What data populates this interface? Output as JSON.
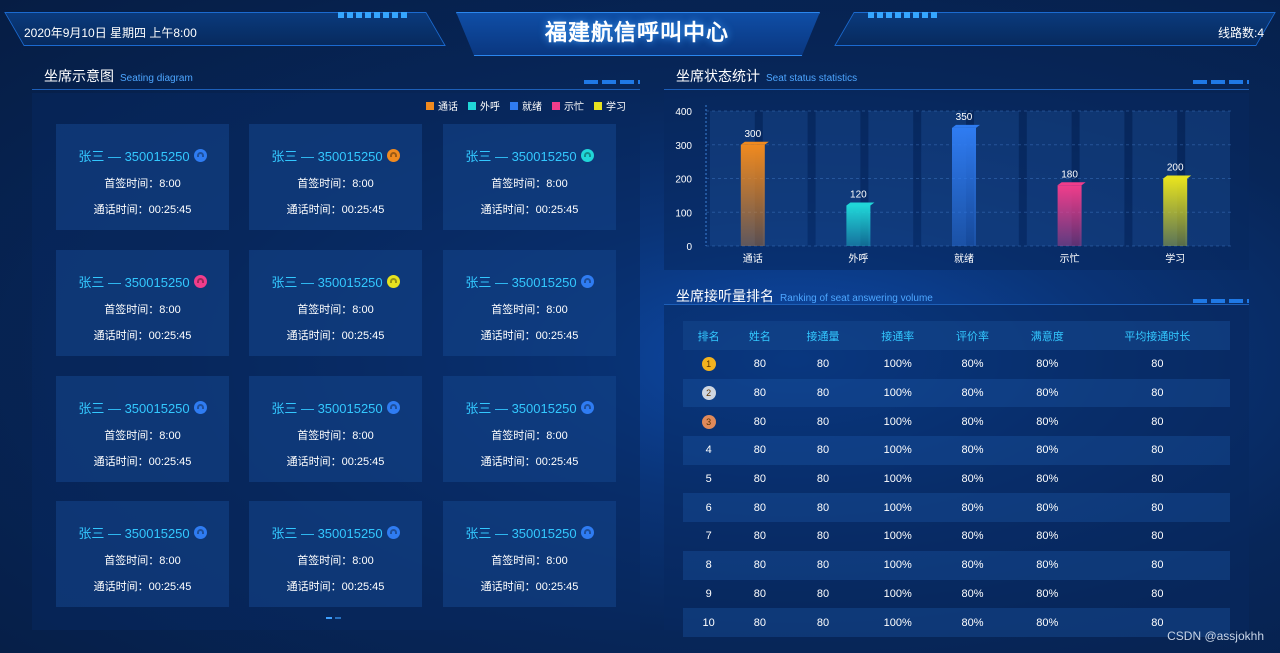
{
  "header": {
    "datetime": "2020年9月10日  星期四  上午8:00",
    "title": "福建航信呼叫中心",
    "line_count": "线路数:4"
  },
  "seat_panel": {
    "title": "坐席示意图",
    "title_en": "Seating diagram",
    "legend": [
      {
        "label": "通话",
        "color": "#f08a1f"
      },
      {
        "label": "外呼",
        "color": "#20d6d8"
      },
      {
        "label": "就绪",
        "color": "#2f7cf2"
      },
      {
        "label": "示忙",
        "color": "#f03d8b"
      },
      {
        "label": "学习",
        "color": "#e6e21f"
      }
    ],
    "cards": [
      {
        "name": "张三 — 350015250",
        "sign": "首签时间：8:00",
        "talk": "通话时间：00:25:45",
        "icon_color": "#2f7cf2"
      },
      {
        "name": "张三 — 350015250",
        "sign": "首签时间：8:00",
        "talk": "通话时间：00:25:45",
        "icon_color": "#f08a1f"
      },
      {
        "name": "张三 — 350015250",
        "sign": "首签时间：8:00",
        "talk": "通话时间：00:25:45",
        "icon_color": "#20d6d8"
      },
      {
        "name": "张三 — 350015250",
        "sign": "首签时间：8:00",
        "talk": "通话时间：00:25:45",
        "icon_color": "#f03d8b"
      },
      {
        "name": "张三 — 350015250",
        "sign": "首签时间：8:00",
        "talk": "通话时间：00:25:45",
        "icon_color": "#e6e21f"
      },
      {
        "name": "张三 — 350015250",
        "sign": "首签时间：8:00",
        "talk": "通话时间：00:25:45",
        "icon_color": "#2f7cf2"
      },
      {
        "name": "张三 — 350015250",
        "sign": "首签时间：8:00",
        "talk": "通话时间：00:25:45",
        "icon_color": "#2f7cf2"
      },
      {
        "name": "张三 — 350015250",
        "sign": "首签时间：8:00",
        "talk": "通话时间：00:25:45",
        "icon_color": "#2f7cf2"
      },
      {
        "name": "张三 — 350015250",
        "sign": "首签时间：8:00",
        "talk": "通话时间：00:25:45",
        "icon_color": "#2f7cf2"
      },
      {
        "name": "张三 — 350015250",
        "sign": "首签时间：8:00",
        "talk": "通话时间：00:25:45",
        "icon_color": "#2f7cf2"
      },
      {
        "name": "张三 — 350015250",
        "sign": "首签时间：8:00",
        "talk": "通话时间：00:25:45",
        "icon_color": "#2f7cf2"
      },
      {
        "name": "张三 — 350015250",
        "sign": "首签时间：8:00",
        "talk": "通话时间：00:25:45",
        "icon_color": "#2f7cf2"
      }
    ]
  },
  "status_panel": {
    "title": "坐席状态统计",
    "title_en": "Seat status statistics"
  },
  "chart_data": {
    "type": "bar",
    "categories": [
      "通话",
      "外呼",
      "就绪",
      "示忙",
      "学习"
    ],
    "values": [
      300,
      120,
      350,
      180,
      200
    ],
    "ylim": [
      0,
      400
    ],
    "yticks": [
      "0",
      "100",
      "200",
      "300",
      "400"
    ],
    "colors": [
      "#f08a1f",
      "#20d6d8",
      "#2f7cf2",
      "#f03d8b",
      "#e6e21f"
    ],
    "grid": false
  },
  "rank_panel": {
    "title": "坐席接听量排名",
    "title_en": "Ranking of seat answering volume",
    "columns": [
      "排名",
      "姓名",
      "接通量",
      "接通率",
      "评价率",
      "满意度",
      "平均接通时长"
    ],
    "rows": [
      [
        "1",
        "80",
        "80",
        "100%",
        "80%",
        "80%",
        "80"
      ],
      [
        "2",
        "80",
        "80",
        "100%",
        "80%",
        "80%",
        "80"
      ],
      [
        "3",
        "80",
        "80",
        "100%",
        "80%",
        "80%",
        "80"
      ],
      [
        "4",
        "80",
        "80",
        "100%",
        "80%",
        "80%",
        "80"
      ],
      [
        "5",
        "80",
        "80",
        "100%",
        "80%",
        "80%",
        "80"
      ],
      [
        "6",
        "80",
        "80",
        "100%",
        "80%",
        "80%",
        "80"
      ],
      [
        "7",
        "80",
        "80",
        "100%",
        "80%",
        "80%",
        "80"
      ],
      [
        "8",
        "80",
        "80",
        "100%",
        "80%",
        "80%",
        "80"
      ],
      [
        "9",
        "80",
        "80",
        "100%",
        "80%",
        "80%",
        "80"
      ],
      [
        "10",
        "80",
        "80",
        "100%",
        "80%",
        "80%",
        "80"
      ]
    ],
    "medal_colors": [
      "#f2b21f",
      "#cfd6e0",
      "#e08a5a"
    ]
  },
  "watermark": "CSDN @assjokhh"
}
